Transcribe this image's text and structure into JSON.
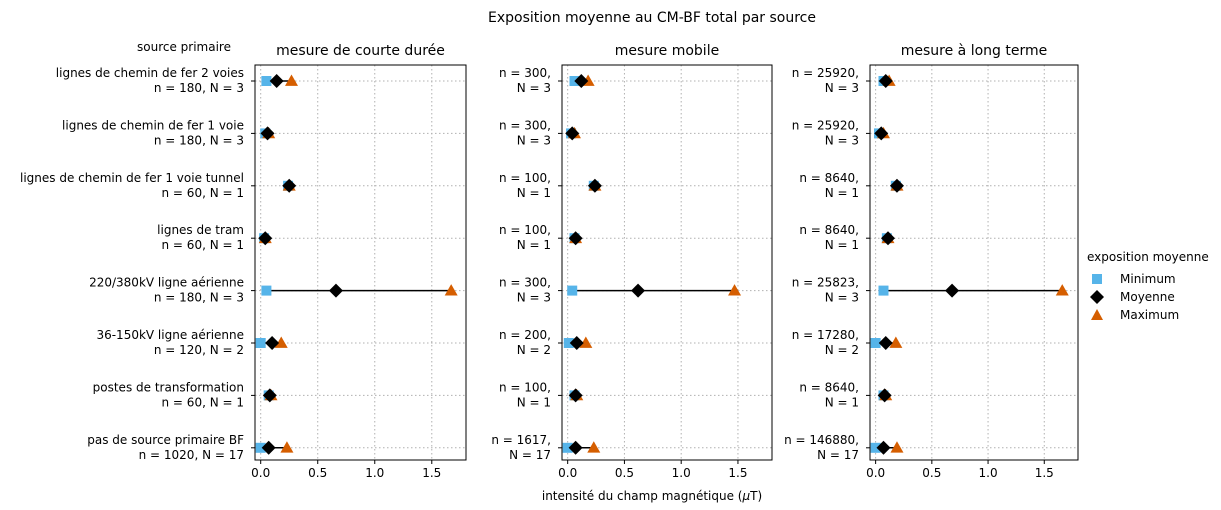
{
  "chart_data": {
    "type": "scatter",
    "title": "Exposition moyenne au CM-BF total par source",
    "xlabel": "intensité du champ magnétique (μT)",
    "row_header": "source primaire",
    "xlim": [
      -0.05,
      1.8
    ],
    "xticks": [
      0.0,
      0.5,
      1.0,
      1.5
    ],
    "xtick_labels": [
      "0.0",
      "0.5",
      "1.0",
      "1.5"
    ],
    "grid": true,
    "legend": {
      "title": "exposition moyenne",
      "placement": "right",
      "entries": [
        {
          "label": "Minimum",
          "marker": "square",
          "color": "#56b4e9"
        },
        {
          "label": "Moyenne",
          "marker": "diamond",
          "color": "#000000"
        },
        {
          "label": "Maximum",
          "marker": "triangle",
          "color": "#d55e00"
        }
      ]
    },
    "sources": [
      "lignes de chemin de fer 2 voies",
      "lignes de chemin de fer 1 voie",
      "lignes de chemin de fer 1 voie tunnel",
      "lignes de tram",
      "220/380kV ligne aérienne",
      "36-150kV ligne aérienne",
      "postes de transformation",
      "pas de source primaire BF"
    ],
    "panels": [
      {
        "title": "mesure de courte durée",
        "n_labels": [
          "n = 180, N = 3",
          "n = 180, N = 3",
          "n = 60, N = 1",
          "n = 60, N = 1",
          "n = 180, N = 3",
          "n = 120, N = 2",
          "n = 60, N = 1",
          "n = 1020, N = 17"
        ],
        "min": [
          0.05,
          0.04,
          0.24,
          0.03,
          0.05,
          0.0,
          0.07,
          0.0
        ],
        "mean": [
          0.14,
          0.06,
          0.25,
          0.04,
          0.66,
          0.1,
          0.08,
          0.07
        ],
        "max": [
          0.27,
          0.07,
          0.25,
          0.04,
          1.67,
          0.18,
          0.09,
          0.23
        ]
      },
      {
        "title": "mesure mobile",
        "n_labels": [
          "n = 300, N = 3",
          "n = 300, N = 3",
          "n = 100, N = 1",
          "n = 100, N = 1",
          "n = 300, N = 3",
          "n = 200, N = 2",
          "n = 100, N = 1",
          "n = 1617, N = 17"
        ],
        "min": [
          0.06,
          0.03,
          0.23,
          0.06,
          0.04,
          0.01,
          0.06,
          0.0
        ],
        "mean": [
          0.12,
          0.04,
          0.24,
          0.07,
          0.62,
          0.08,
          0.07,
          0.07
        ],
        "max": [
          0.18,
          0.06,
          0.24,
          0.07,
          1.47,
          0.16,
          0.08,
          0.23
        ]
      },
      {
        "title": "mesure à long terme",
        "n_labels": [
          "n = 25920, N = 3",
          "n = 25920, N = 3",
          "n = 8640, N = 1",
          "n = 8640, N = 1",
          "n = 25823, N = 3",
          "n = 17280, N = 2",
          "n = 8640, N = 1",
          "n = 146880, N = 17"
        ],
        "min": [
          0.07,
          0.03,
          0.18,
          0.1,
          0.07,
          0.0,
          0.07,
          0.0
        ],
        "mean": [
          0.09,
          0.05,
          0.19,
          0.11,
          0.68,
          0.09,
          0.08,
          0.07
        ],
        "max": [
          0.12,
          0.07,
          0.19,
          0.11,
          1.66,
          0.18,
          0.09,
          0.19
        ]
      }
    ]
  }
}
